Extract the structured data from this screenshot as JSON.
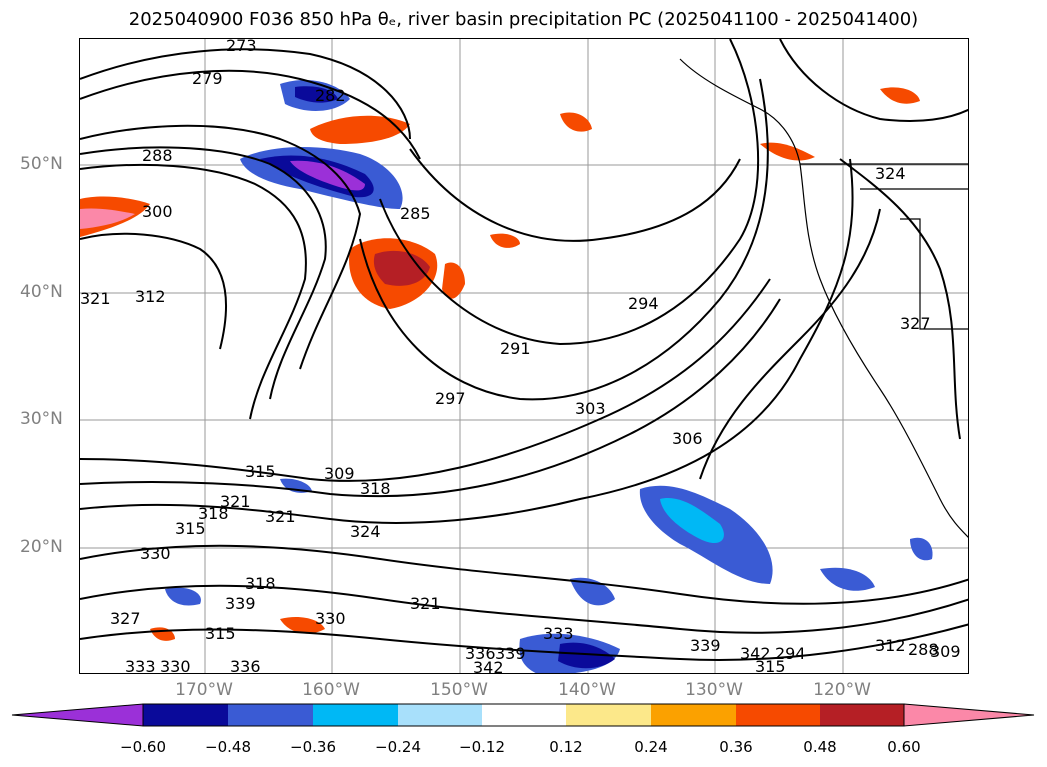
{
  "title": "2025040900 F036 850 hPa θₑ, river basin precipitation PC (2025041100 - 2025041400)",
  "map": {
    "lat_labels": [
      "50°N",
      "40°N",
      "30°N",
      "20°N"
    ],
    "lon_labels": [
      "170°W",
      "160°W",
      "150°W",
      "140°W",
      "130°W",
      "120°W"
    ],
    "contour_labels": [
      "273",
      "279",
      "282",
      "288",
      "300",
      "285",
      "321",
      "312",
      "291",
      "294",
      "297",
      "303",
      "306",
      "315",
      "309",
      "318",
      "321",
      "318",
      "315",
      "321",
      "324",
      "327",
      "330",
      "333",
      "330",
      "336",
      "339",
      "318",
      "315",
      "321",
      "330",
      "336",
      "339",
      "342",
      "333",
      "339",
      "342",
      "294",
      "315",
      "312",
      "288",
      "309",
      "324",
      "327"
    ],
    "precip_colors": {
      "purple": "#9b30d8",
      "navy": "#0a0a9a",
      "royal": "#3a5bd4",
      "cyan": "#00b8f5",
      "light_blue": "#a8e0fb",
      "yellow": "#fce88a",
      "orange": "#fba100",
      "red_orange": "#f64a00",
      "dark_red": "#b51f25",
      "pink": "#fb88a8"
    }
  },
  "colorbar": {
    "tick_labels": [
      "−0.60",
      "−0.48",
      "−0.36",
      "−0.24",
      "−0.12",
      "0.12",
      "0.24",
      "0.36",
      "0.48",
      "0.60"
    ],
    "colors": [
      "#9b30d8",
      "#0a0a9a",
      "#3a5bd4",
      "#00b8f5",
      "#a8e0fb",
      "#ffffff",
      "#fce88a",
      "#fba100",
      "#f64a00",
      "#b51f25",
      "#fb88a8"
    ]
  }
}
